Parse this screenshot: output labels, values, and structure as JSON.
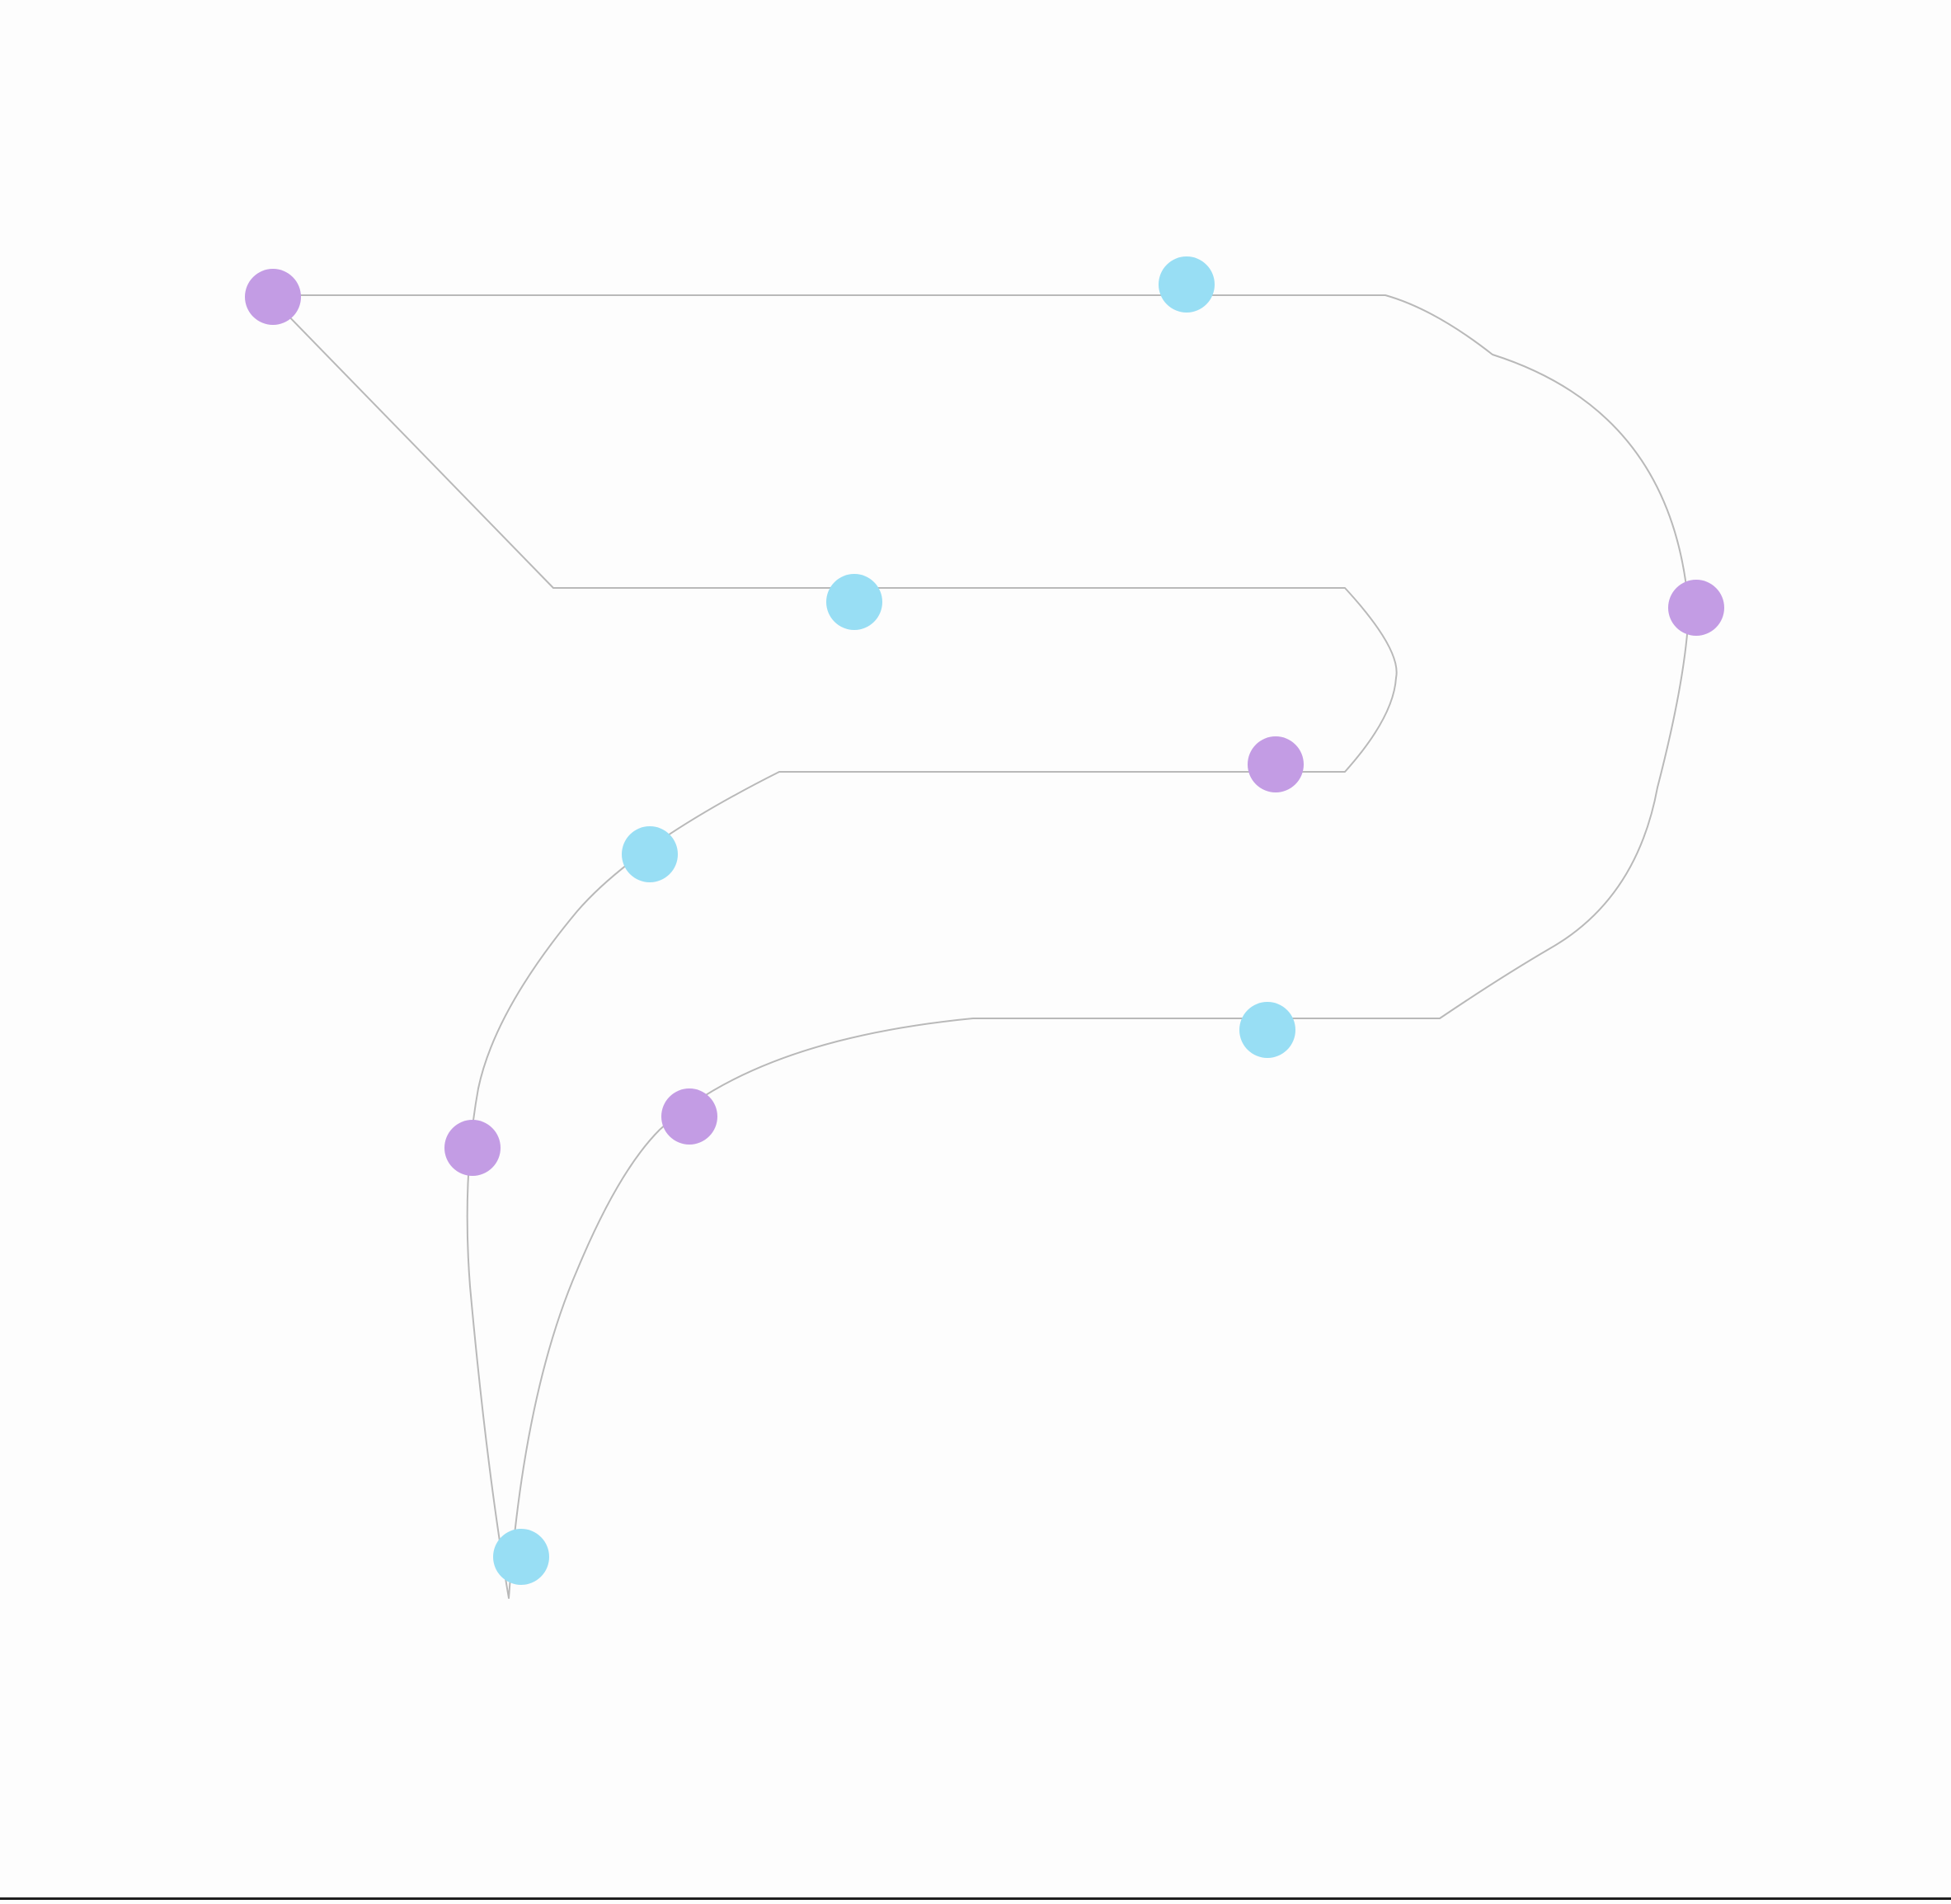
{
  "colors": {
    "background": "#fdfdfd",
    "outline": "#b9b9b9",
    "purple_dot": "#c39ce4",
    "cyan_dot": "#98def4",
    "bottom_rule": "#1f1f1f"
  },
  "logo": {
    "icon": "stylized-p-logo-outline",
    "dots": [
      {
        "kind": "purple"
      },
      {
        "kind": "cyan"
      },
      {
        "kind": "cyan"
      },
      {
        "kind": "purple"
      },
      {
        "kind": "purple"
      },
      {
        "kind": "cyan"
      },
      {
        "kind": "purple"
      },
      {
        "kind": "purple"
      },
      {
        "kind": "cyan"
      },
      {
        "kind": "cyan"
      }
    ]
  }
}
